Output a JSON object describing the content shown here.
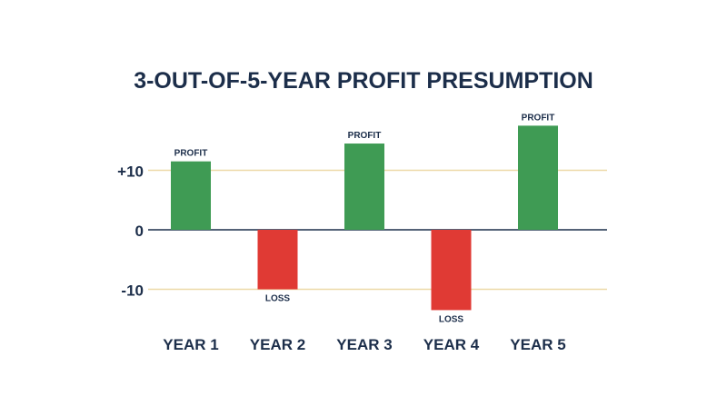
{
  "chart_data": {
    "type": "bar",
    "title": "3-OUT-OF-5-YEAR PROFIT PRESUMPTION",
    "categories": [
      "YEAR 1",
      "YEAR 2",
      "YEAR 3",
      "YEAR 4",
      "YEAR 5"
    ],
    "values": [
      11.5,
      -10,
      14.5,
      -13.5,
      17.5
    ],
    "bar_labels": [
      "PROFIT",
      "LOSS",
      "PROFIT",
      "LOSS",
      "PROFIT"
    ],
    "y_ticks": [
      {
        "value": 10,
        "label": "+10"
      },
      {
        "value": 0,
        "label": "0"
      },
      {
        "value": -10,
        "label": "-10"
      }
    ],
    "ylim": [
      -15,
      20
    ],
    "grid": true,
    "colors": {
      "profit": "#3f9b54",
      "loss": "#e03a34",
      "text": "#1c2e4a",
      "gridline": "#edd9a8",
      "zero_line": "#1c2e4a"
    }
  }
}
